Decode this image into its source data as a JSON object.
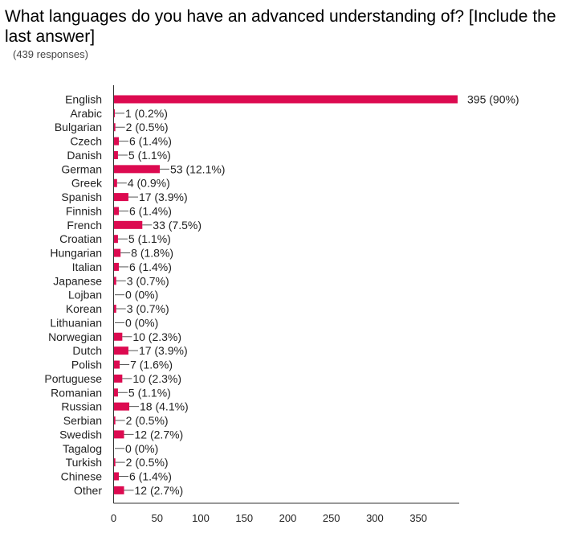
{
  "title": "What languages do you have an advanced understanding of? [Include the last answer]",
  "subtitle": "(439 responses)",
  "chart_data": {
    "type": "bar",
    "orientation": "horizontal",
    "color": "#dc0a50",
    "categories": [
      "English",
      "Arabic",
      "Bulgarian",
      "Czech",
      "Danish",
      "German",
      "Greek",
      "Spanish",
      "Finnish",
      "French",
      "Croatian",
      "Hungarian",
      "Italian",
      "Japanese",
      "Lojban",
      "Korean",
      "Lithuanian",
      "Norwegian",
      "Dutch",
      "Polish",
      "Portuguese",
      "Romanian",
      "Russian",
      "Serbian",
      "Swedish",
      "Tagalog",
      "Turkish",
      "Chinese",
      "Other"
    ],
    "values": [
      395,
      1,
      2,
      6,
      5,
      53,
      4,
      17,
      6,
      33,
      5,
      8,
      6,
      3,
      0,
      3,
      0,
      10,
      17,
      7,
      10,
      5,
      18,
      2,
      12,
      0,
      2,
      6,
      12
    ],
    "value_labels": [
      "395 (90%)",
      "1 (0.2%)",
      "2 (0.5%)",
      "6 (1.4%)",
      "5 (1.1%)",
      "53 (12.1%)",
      "4 (0.9%)",
      "17 (3.9%)",
      "6 (1.4%)",
      "33 (7.5%)",
      "5 (1.1%)",
      "8 (1.8%)",
      "6 (1.4%)",
      "3 (0.7%)",
      "0 (0%)",
      "3 (0.7%)",
      "0 (0%)",
      "10 (2.3%)",
      "17 (3.9%)",
      "7 (1.6%)",
      "10 (2.3%)",
      "5 (1.1%)",
      "18 (4.1%)",
      "2 (0.5%)",
      "12 (2.7%)",
      "0 (0%)",
      "2 (0.5%)",
      "6 (1.4%)",
      "12 (2.7%)"
    ],
    "xticks": [
      0,
      50,
      100,
      150,
      200,
      250,
      300,
      350
    ],
    "xlim": [
      0,
      400
    ],
    "grid": false,
    "legend": "none"
  }
}
